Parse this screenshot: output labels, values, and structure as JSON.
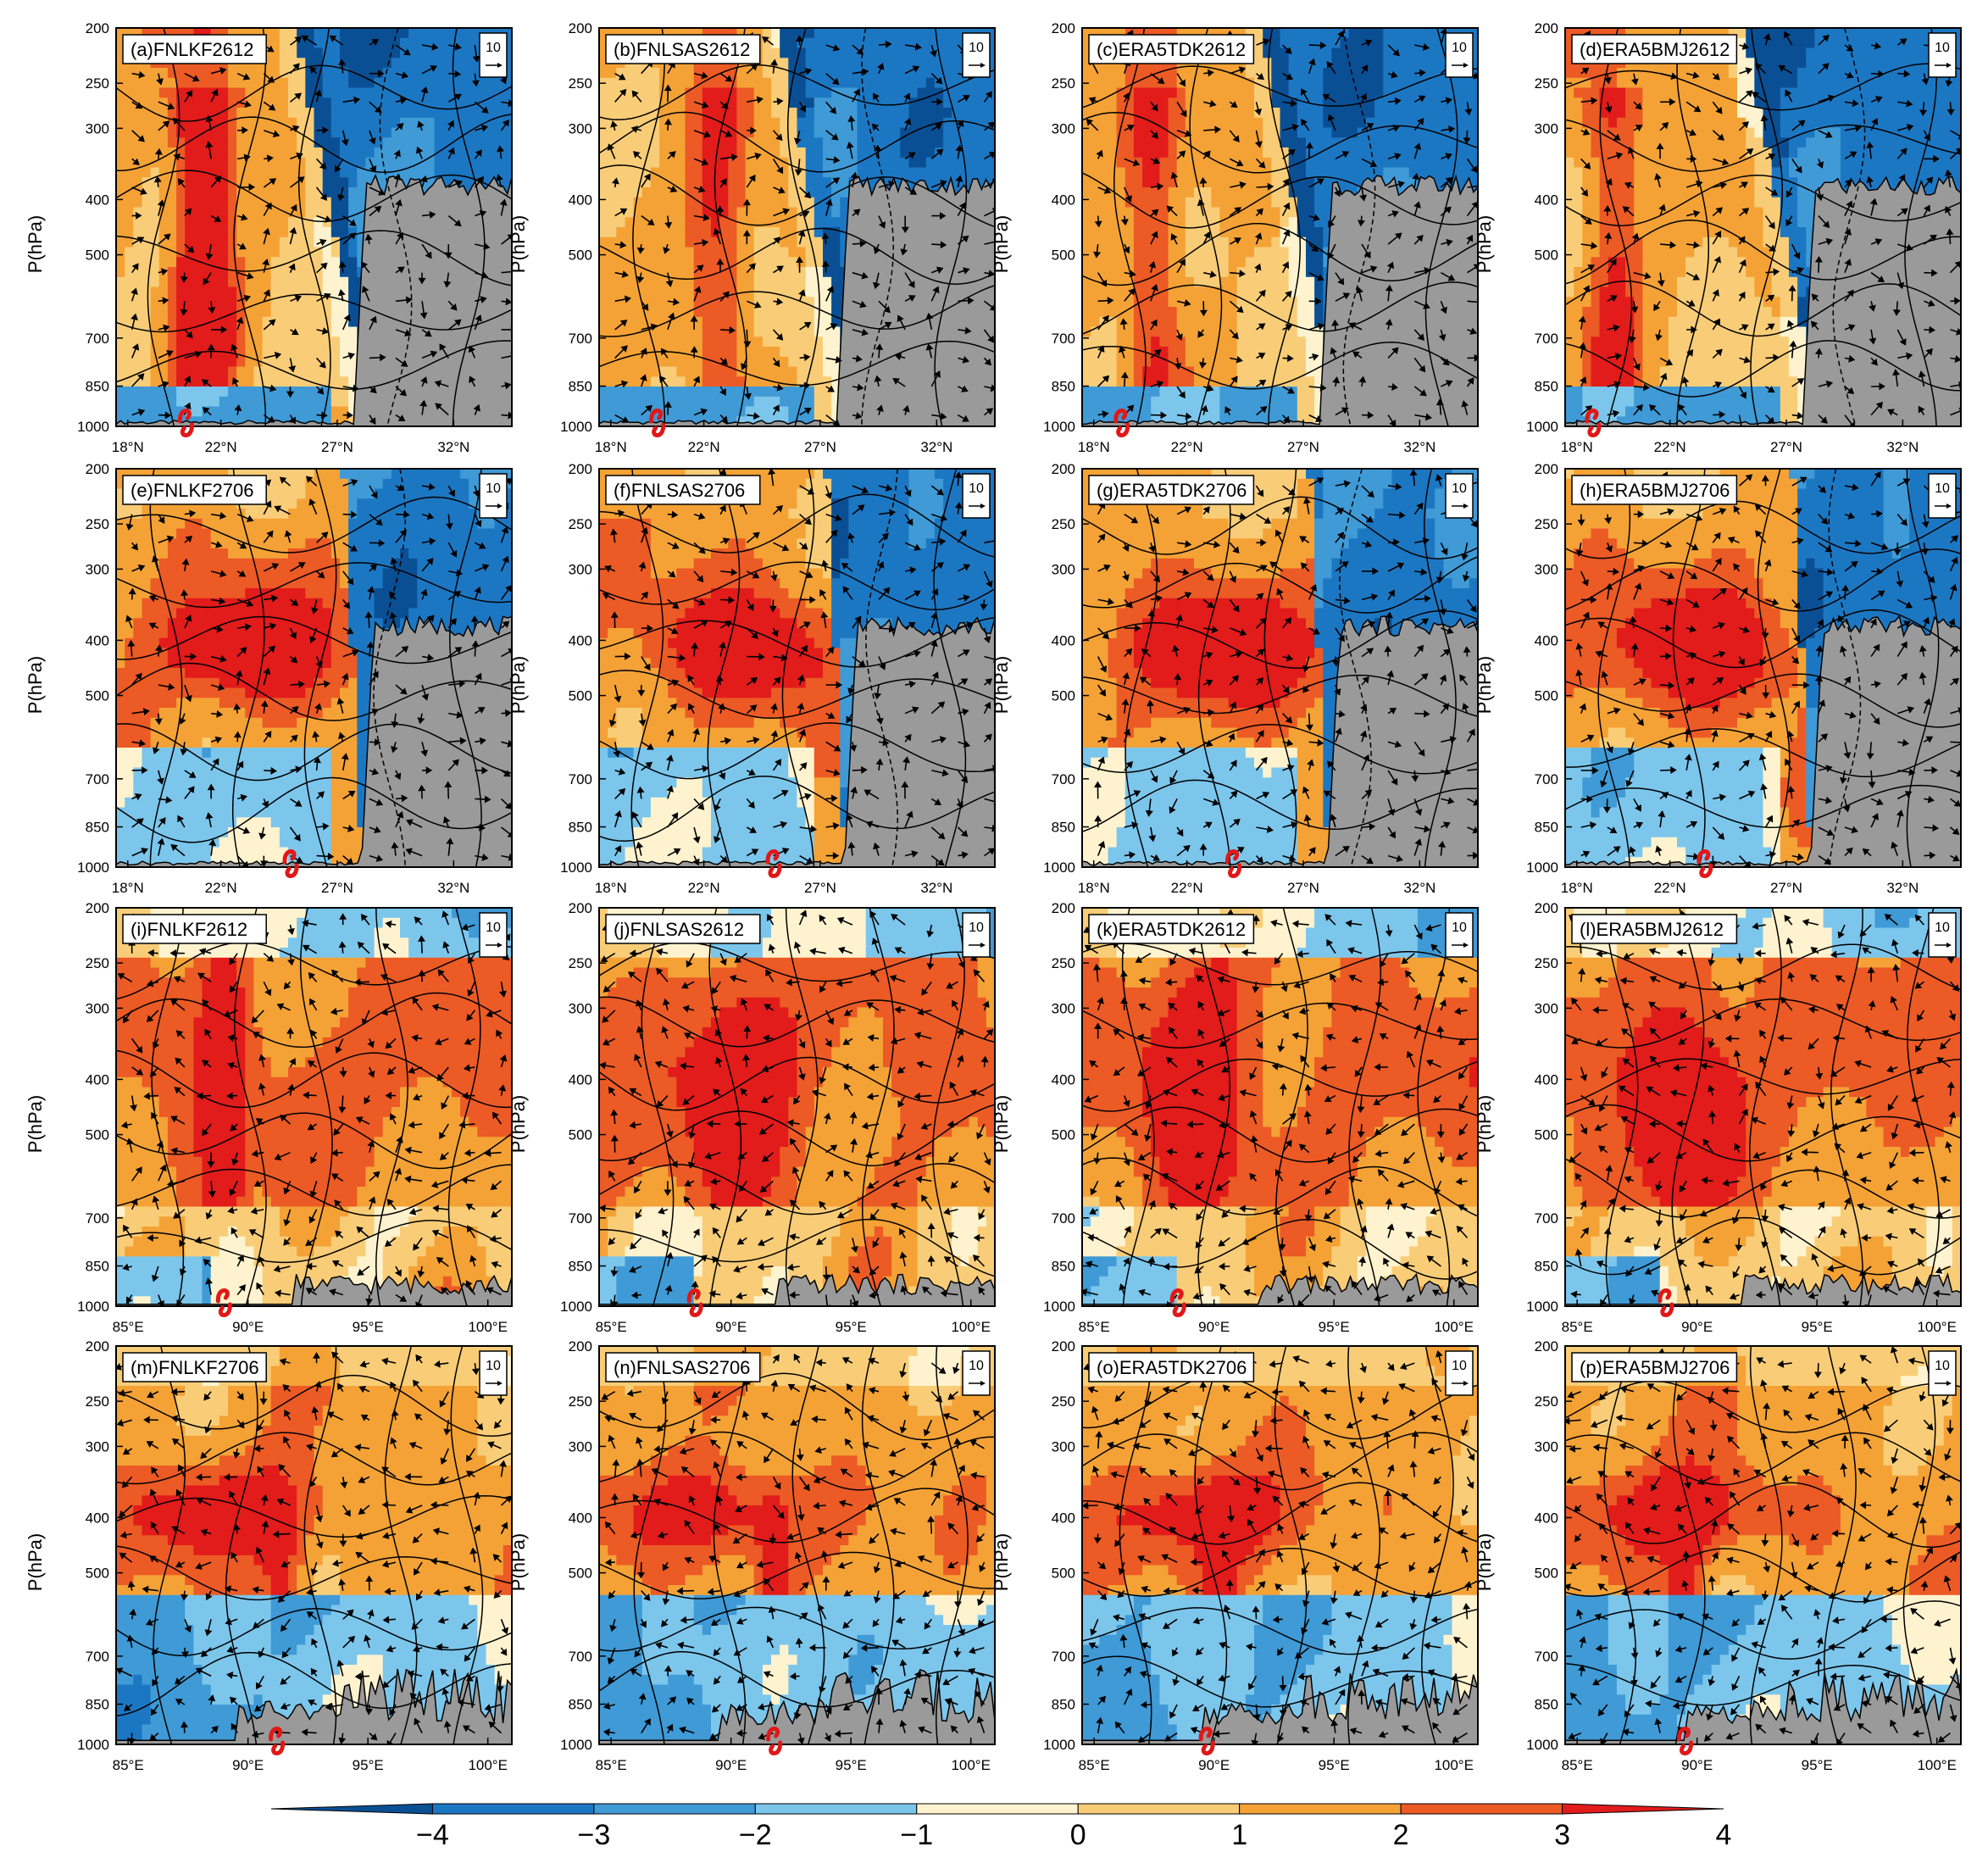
{
  "chart_data": {
    "type": "heatmap",
    "layout": {
      "rows": 4,
      "columns": 4
    },
    "y_axis": {
      "label": "P(hPa)",
      "ticks": [
        "200",
        "250",
        "300",
        "400",
        "500",
        "700",
        "850",
        "1000"
      ],
      "range": [
        1000,
        200
      ]
    },
    "lat_ticks": [
      "18°N",
      "22°N",
      "27°N",
      "32°N"
    ],
    "lon_ticks": [
      "85°E",
      "90°E",
      "95°E",
      "100°E"
    ],
    "lat_range": [
      17.5,
      34.5
    ],
    "lon_range": [
      84.5,
      101
    ],
    "vector_reference": "10",
    "colorbar": {
      "labels": [
        "−4",
        "−3",
        "−2",
        "−1",
        "0",
        "1",
        "2",
        "3",
        "4"
      ],
      "colors": [
        "#0a4f94",
        "#1c77c3",
        "#3f9ad6",
        "#7cc6ec",
        "#fff3cf",
        "#f9cd78",
        "#f4a236",
        "#ec5a25",
        "#e21b1b"
      ]
    },
    "panels": [
      {
        "label": "(a)FNLKF2612",
        "x_axis": "lat",
        "typhoon_marker": 20.5
      },
      {
        "label": "(b)FNLSAS2612",
        "x_axis": "lat",
        "typhoon_marker": 20.0
      },
      {
        "label": "(c)ERA5TDK2612",
        "x_axis": "lat",
        "typhoon_marker": 19.2
      },
      {
        "label": "(d)ERA5BMJ2612",
        "x_axis": "lat",
        "typhoon_marker": 18.7
      },
      {
        "label": "(e)FNLKF2706",
        "x_axis": "lat",
        "typhoon_marker": 25.0
      },
      {
        "label": "(f)FNLSAS2706",
        "x_axis": "lat",
        "typhoon_marker": 25.0
      },
      {
        "label": "(g)ERA5TDK2706",
        "x_axis": "lat",
        "typhoon_marker": 24.0
      },
      {
        "label": "(h)ERA5BMJ2706",
        "x_axis": "lat",
        "typhoon_marker": 23.5
      },
      {
        "label": "(i)FNLKF2612",
        "x_axis": "lon",
        "typhoon_marker": 89.0
      },
      {
        "label": "(j)FNLSAS2612",
        "x_axis": "lon",
        "typhoon_marker": 88.5
      },
      {
        "label": "(k)ERA5TDK2612",
        "x_axis": "lon",
        "typhoon_marker": 88.5
      },
      {
        "label": "(l)ERA5BMJ2612",
        "x_axis": "lon",
        "typhoon_marker": 88.7
      },
      {
        "label": "(m)FNLKF2706",
        "x_axis": "lon",
        "typhoon_marker": 91.2
      },
      {
        "label": "(n)FNLSAS2706",
        "x_axis": "lon",
        "typhoon_marker": 91.8
      },
      {
        "label": "(o)ERA5TDK2706",
        "x_axis": "lon",
        "typhoon_marker": 89.7
      },
      {
        "label": "(p)ERA5BMJ2706",
        "x_axis": "lon",
        "typhoon_marker": 89.5
      }
    ]
  }
}
